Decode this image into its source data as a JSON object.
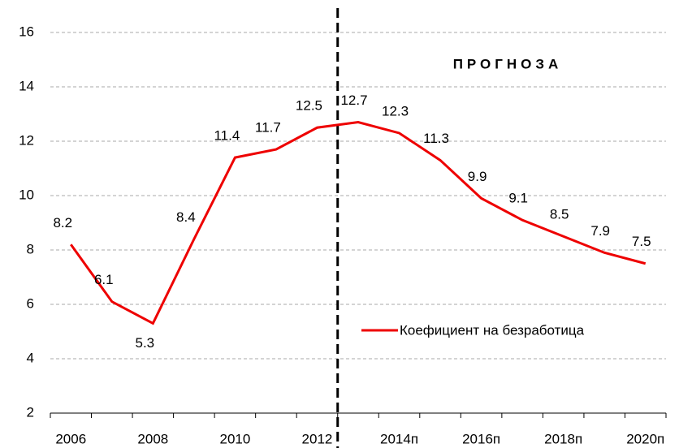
{
  "chart_data": {
    "type": "line",
    "categories": [
      "2006",
      null,
      "2008",
      null,
      "2010",
      null,
      "2012",
      null,
      "2014п",
      null,
      "2016п",
      null,
      "2018п",
      null,
      "2020п"
    ],
    "series": [
      {
        "name": "Коефициент на безработица",
        "color": "#ee0000",
        "values": [
          8.2,
          6.1,
          5.3,
          8.4,
          11.4,
          11.7,
          12.5,
          12.7,
          12.3,
          11.3,
          9.9,
          9.1,
          8.5,
          7.9,
          7.5
        ]
      }
    ],
    "ylim": [
      2,
      16
    ],
    "yticks": [
      2,
      4,
      6,
      8,
      10,
      12,
      14,
      16
    ],
    "grid": true,
    "annotation": "ПРОГНОЗА"
  }
}
